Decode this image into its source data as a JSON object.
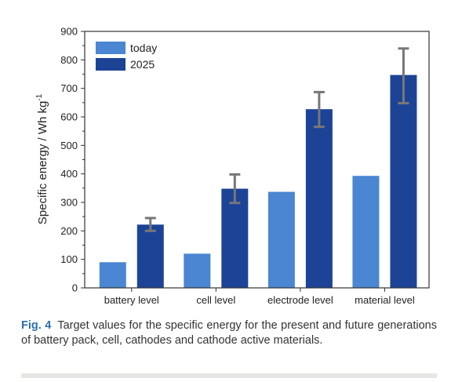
{
  "chart_data": {
    "type": "bar",
    "categories": [
      "battery level",
      "cell level",
      "electrode level",
      "material level"
    ],
    "series": [
      {
        "name": "today",
        "color": "#4a86d1",
        "values": [
          90,
          120,
          337,
          393
        ]
      },
      {
        "name": "2025",
        "color": "#1d4396",
        "values": [
          222,
          348,
          627,
          747
        ],
        "error_low": [
          200,
          298,
          565,
          648
        ],
        "error_high": [
          245,
          398,
          687,
          840
        ]
      }
    ],
    "ylabel": "Specific energy / Wh kg",
    "ylabel_superscript": "-1",
    "ylim": [
      0,
      900
    ],
    "yticks": [
      0,
      100,
      200,
      300,
      400,
      500,
      600,
      700,
      800,
      900
    ],
    "legend_position": "top-left",
    "grid": false,
    "error_bar_color": "#777777"
  },
  "caption": {
    "label": "Fig. 4",
    "text": "Target values for the specific energy for the present and future generations of battery pack, cell, cathodes and cathode active materials."
  }
}
